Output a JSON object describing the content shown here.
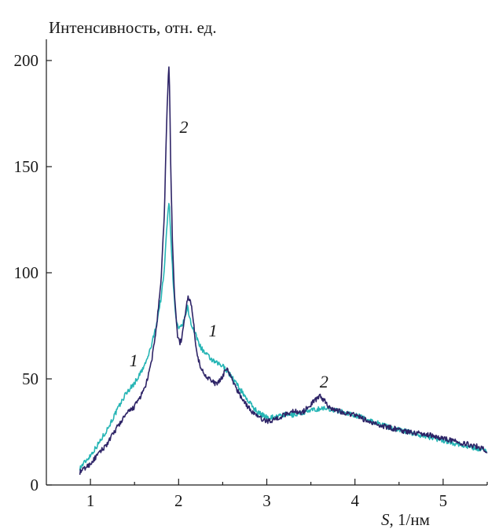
{
  "chart_data": {
    "type": "line",
    "title": "",
    "ylabel": "Интенсивность, отн. ед.",
    "xlabel_var": "S",
    "xlabel_unit": ", 1/нм",
    "xlim": [
      0.5,
      5.5
    ],
    "ylim": [
      0,
      210
    ],
    "x_ticks": [
      1,
      2,
      3,
      4,
      5
    ],
    "y_ticks": [
      0,
      50,
      100,
      150,
      200
    ],
    "grid": false,
    "colors": {
      "series_1": "#26b5b5",
      "series_2": "#2e2467",
      "axis": "#1a1a1a"
    },
    "series": [
      {
        "id": "1",
        "x": [
          0.88,
          1.0,
          1.1,
          1.2,
          1.3,
          1.4,
          1.5,
          1.6,
          1.65,
          1.7,
          1.75,
          1.8,
          1.84,
          1.86,
          1.88,
          1.89,
          1.9,
          1.92,
          1.94,
          1.96,
          1.98,
          2.0,
          2.02,
          2.05,
          2.08,
          2.1,
          2.12,
          2.15,
          2.2,
          2.25,
          2.3,
          2.35,
          2.4,
          2.45,
          2.5,
          2.55,
          2.6,
          2.65,
          2.7,
          2.8,
          2.9,
          3.0,
          3.1,
          3.2,
          3.3,
          3.4,
          3.5,
          3.6,
          3.7,
          3.8,
          3.9,
          4.0,
          4.2,
          4.4,
          4.6,
          4.8,
          5.0,
          5.2,
          5.4,
          5.5
        ],
        "y": [
          8,
          14,
          20,
          27,
          35,
          43,
          48,
          55,
          60,
          67,
          76,
          88,
          102,
          118,
          130,
          133,
          128,
          110,
          95,
          82,
          76,
          73,
          74,
          76,
          80,
          84,
          80,
          75,
          70,
          65,
          62,
          60,
          58,
          57,
          56,
          54,
          51,
          48,
          45,
          39,
          34,
          32,
          32,
          33,
          33,
          34,
          35,
          36,
          36,
          35,
          34,
          33,
          30,
          27,
          25,
          23,
          21,
          19,
          17,
          16
        ]
      },
      {
        "id": "2",
        "x": [
          0.88,
          1.0,
          1.1,
          1.2,
          1.3,
          1.4,
          1.5,
          1.6,
          1.65,
          1.7,
          1.75,
          1.8,
          1.84,
          1.86,
          1.88,
          1.89,
          1.9,
          1.91,
          1.93,
          1.95,
          1.97,
          1.99,
          2.01,
          2.03,
          2.05,
          2.08,
          2.1,
          2.13,
          2.16,
          2.19,
          2.22,
          2.25,
          2.3,
          2.35,
          2.4,
          2.45,
          2.5,
          2.53,
          2.56,
          2.6,
          2.7,
          2.8,
          2.9,
          3.0,
          3.1,
          3.2,
          3.3,
          3.4,
          3.5,
          3.55,
          3.6,
          3.65,
          3.7,
          3.8,
          3.9,
          4.0,
          4.2,
          4.4,
          4.6,
          4.8,
          5.0,
          5.2,
          5.4,
          5.5
        ],
        "y": [
          6,
          10,
          15,
          20,
          27,
          33,
          37,
          44,
          50,
          60,
          75,
          95,
          130,
          165,
          190,
          197,
          182,
          150,
          115,
          92,
          80,
          70,
          67,
          68,
          73,
          82,
          88,
          88,
          80,
          68,
          60,
          55,
          52,
          50,
          48,
          48,
          51,
          55,
          54,
          50,
          42,
          36,
          32,
          30,
          31,
          33,
          35,
          34,
          38,
          40,
          42,
          40,
          37,
          35,
          34,
          33,
          29,
          27,
          25,
          24,
          22,
          20,
          18,
          16
        ]
      }
    ],
    "curve_labels": [
      {
        "text": "1",
        "x": 1.49,
        "y": 56
      },
      {
        "text": "1",
        "x": 2.39,
        "y": 70
      },
      {
        "text": "2",
        "x": 2.06,
        "y": 166
      },
      {
        "text": "2",
        "x": 3.65,
        "y": 46
      }
    ]
  }
}
